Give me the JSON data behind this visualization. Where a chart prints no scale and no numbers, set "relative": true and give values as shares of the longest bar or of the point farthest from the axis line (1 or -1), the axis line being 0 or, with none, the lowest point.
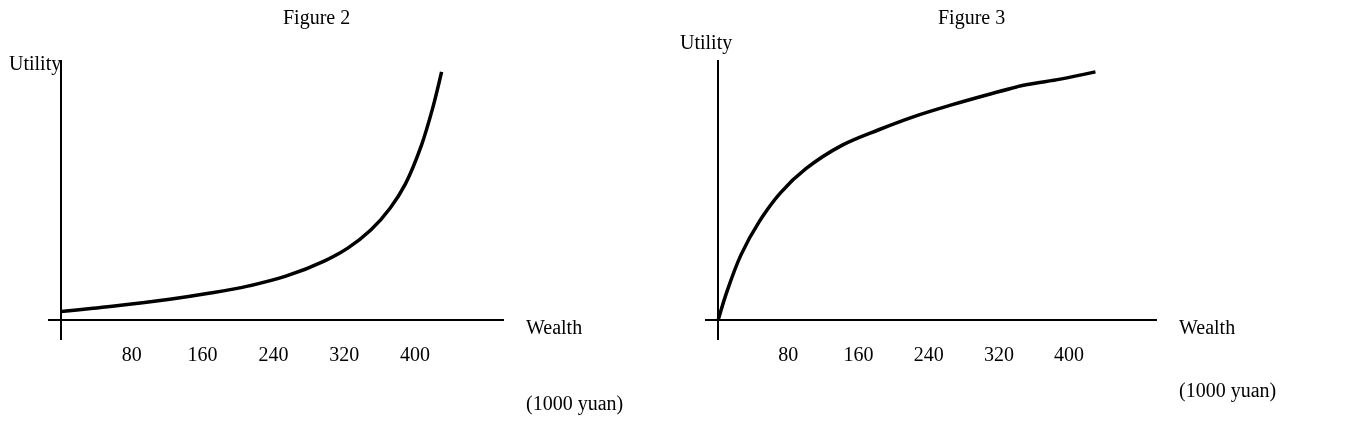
{
  "chart_data": [
    {
      "type": "line",
      "title": "Figure 2",
      "xlabel": "Wealth",
      "ylabel": "Utility",
      "annotations": [
        "(1000 yuan)"
      ],
      "relative": true,
      "tick_labels": "x",
      "xlim": [
        -15,
        500
      ],
      "xticks": [
        80,
        160,
        240,
        320,
        400
      ],
      "x": [
        0,
        58,
        123,
        167,
        211,
        254,
        298,
        324,
        350,
        372,
        389,
        407,
        420,
        430
      ],
      "series": [
        {
          "color": "#000000",
          "values": [
            0.035,
            0.056,
            0.084,
            0.108,
            0.137,
            0.177,
            0.239,
            0.29,
            0.363,
            0.452,
            0.548,
            0.702,
            0.855,
            1.0
          ]
        }
      ]
    },
    {
      "type": "line",
      "title": "Figure 3",
      "xlabel": "Wealth",
      "ylabel": "Utility",
      "annotations": [
        "(1000 yuan)"
      ],
      "relative": true,
      "tick_labels": "x",
      "xlim": [
        -15,
        500
      ],
      "xticks": [
        80,
        160,
        240,
        320,
        400
      ],
      "x": [
        0,
        9.5,
        26,
        47,
        71,
        100,
        142,
        183,
        224,
        266,
        307,
        348,
        390,
        430
      ],
      "series": [
        {
          "color": "#000000",
          "values": [
            0,
            0.11,
            0.263,
            0.398,
            0.513,
            0.61,
            0.706,
            0.767,
            0.821,
            0.867,
            0.908,
            0.946,
            0.971,
            1.0
          ]
        }
      ]
    }
  ]
}
